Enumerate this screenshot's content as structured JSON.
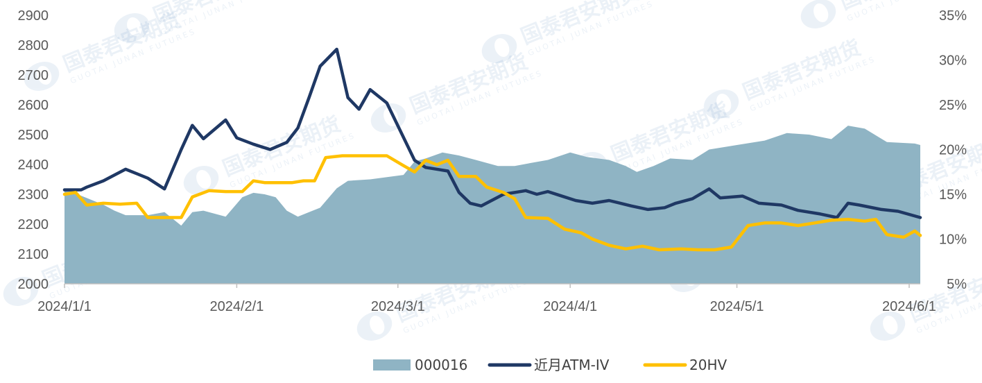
{
  "chart_data": {
    "type": "line",
    "x_axis": {
      "type": "date",
      "range": [
        "2024-01-01",
        "2024-06-03"
      ],
      "ticks": [
        {
          "date": "2024-01-01",
          "label": "2024/1/1"
        },
        {
          "date": "2024-02-01",
          "label": "2024/2/1"
        },
        {
          "date": "2024-03-01",
          "label": "2024/3/1"
        },
        {
          "date": "2024-04-01",
          "label": "2024/4/1"
        },
        {
          "date": "2024-05-01",
          "label": "2024/5/1"
        },
        {
          "date": "2024-06-01",
          "label": "2024/6/1"
        }
      ]
    },
    "y_left": {
      "min": 2000,
      "max": 2900,
      "ticks": [
        "2000",
        "2100",
        "2200",
        "2300",
        "2400",
        "2500",
        "2600",
        "2700",
        "2800",
        "2900"
      ]
    },
    "y_right": {
      "min": 0.05,
      "max": 0.35,
      "ticks": [
        "5%",
        "10%",
        "15%",
        "20%",
        "25%",
        "30%",
        "35%"
      ]
    },
    "legend_position": "bottom",
    "grid": false,
    "series": [
      {
        "name": "000016",
        "kind": "area",
        "axis": "left",
        "color": "#8fb4c4",
        "points": [
          [
            "2024-01-01",
            2320
          ],
          [
            "2024-01-04",
            2295
          ],
          [
            "2024-01-08",
            2265
          ],
          [
            "2024-01-10",
            2245
          ],
          [
            "2024-01-12",
            2230
          ],
          [
            "2024-01-16",
            2230
          ],
          [
            "2024-01-19",
            2240
          ],
          [
            "2024-01-22",
            2195
          ],
          [
            "2024-01-24",
            2240
          ],
          [
            "2024-01-26",
            2245
          ],
          [
            "2024-01-30",
            2225
          ],
          [
            "2024-02-02",
            2290
          ],
          [
            "2024-02-04",
            2305
          ],
          [
            "2024-02-06",
            2300
          ],
          [
            "2024-02-08",
            2290
          ],
          [
            "2024-02-10",
            2245
          ],
          [
            "2024-02-12",
            2225
          ],
          [
            "2024-02-14",
            2240
          ],
          [
            "2024-02-16",
            2255
          ],
          [
            "2024-02-19",
            2320
          ],
          [
            "2024-02-21",
            2345
          ],
          [
            "2024-02-25",
            2350
          ],
          [
            "2024-03-02",
            2365
          ],
          [
            "2024-03-04",
            2410
          ],
          [
            "2024-03-06",
            2420
          ],
          [
            "2024-03-09",
            2440
          ],
          [
            "2024-03-12",
            2430
          ],
          [
            "2024-03-15",
            2415
          ],
          [
            "2024-03-19",
            2395
          ],
          [
            "2024-03-22",
            2395
          ],
          [
            "2024-03-25",
            2405
          ],
          [
            "2024-03-28",
            2415
          ],
          [
            "2024-04-01",
            2440
          ],
          [
            "2024-04-04",
            2425
          ],
          [
            "2024-04-08",
            2415
          ],
          [
            "2024-04-11",
            2395
          ],
          [
            "2024-04-13",
            2375
          ],
          [
            "2024-04-16",
            2395
          ],
          [
            "2024-04-19",
            2420
          ],
          [
            "2024-04-23",
            2415
          ],
          [
            "2024-04-26",
            2450
          ],
          [
            "2024-05-01",
            2465
          ],
          [
            "2024-05-06",
            2480
          ],
          [
            "2024-05-10",
            2505
          ],
          [
            "2024-05-14",
            2500
          ],
          [
            "2024-05-18",
            2485
          ],
          [
            "2024-05-21",
            2530
          ],
          [
            "2024-05-24",
            2520
          ],
          [
            "2024-05-28",
            2475
          ],
          [
            "2024-06-02",
            2470
          ],
          [
            "2024-06-03",
            2465
          ]
        ]
      },
      {
        "name": "近月ATM-IV",
        "kind": "line",
        "axis": "right",
        "color": "#1f3864",
        "points": [
          [
            "2024-01-01",
            0.155
          ],
          [
            "2024-01-04",
            0.155
          ],
          [
            "2024-01-05",
            0.158
          ],
          [
            "2024-01-08",
            0.165
          ],
          [
            "2024-01-12",
            0.178
          ],
          [
            "2024-01-14",
            0.173
          ],
          [
            "2024-01-16",
            0.168
          ],
          [
            "2024-01-19",
            0.156
          ],
          [
            "2024-01-22",
            0.2
          ],
          [
            "2024-01-24",
            0.227
          ],
          [
            "2024-01-26",
            0.212
          ],
          [
            "2024-01-30",
            0.233
          ],
          [
            "2024-02-01",
            0.213
          ],
          [
            "2024-02-04",
            0.206
          ],
          [
            "2024-02-07",
            0.2
          ],
          [
            "2024-02-10",
            0.208
          ],
          [
            "2024-02-12",
            0.224
          ],
          [
            "2024-02-14",
            0.258
          ],
          [
            "2024-02-16",
            0.293
          ],
          [
            "2024-02-19",
            0.312
          ],
          [
            "2024-02-21",
            0.258
          ],
          [
            "2024-02-23",
            0.245
          ],
          [
            "2024-02-25",
            0.267
          ],
          [
            "2024-02-28",
            0.252
          ],
          [
            "2024-03-04",
            0.188
          ],
          [
            "2024-03-06",
            0.18
          ],
          [
            "2024-03-10",
            0.176
          ],
          [
            "2024-03-12",
            0.152
          ],
          [
            "2024-03-14",
            0.14
          ],
          [
            "2024-03-16",
            0.137
          ],
          [
            "2024-03-20",
            0.15
          ],
          [
            "2024-03-24",
            0.154
          ],
          [
            "2024-03-26",
            0.15
          ],
          [
            "2024-03-28",
            0.153
          ],
          [
            "2024-03-30",
            0.149
          ],
          [
            "2024-04-02",
            0.143
          ],
          [
            "2024-04-05",
            0.14
          ],
          [
            "2024-04-08",
            0.143
          ],
          [
            "2024-04-12",
            0.137
          ],
          [
            "2024-04-15",
            0.133
          ],
          [
            "2024-04-18",
            0.135
          ],
          [
            "2024-04-20",
            0.14
          ],
          [
            "2024-04-23",
            0.145
          ],
          [
            "2024-04-26",
            0.156
          ],
          [
            "2024-04-28",
            0.146
          ],
          [
            "2024-05-02",
            0.148
          ],
          [
            "2024-05-05",
            0.14
          ],
          [
            "2024-05-09",
            0.138
          ],
          [
            "2024-05-12",
            0.132
          ],
          [
            "2024-05-16",
            0.128
          ],
          [
            "2024-05-19",
            0.124
          ],
          [
            "2024-05-21",
            0.14
          ],
          [
            "2024-05-23",
            0.138
          ],
          [
            "2024-05-27",
            0.133
          ],
          [
            "2024-05-30",
            0.131
          ],
          [
            "2024-06-03",
            0.124
          ]
        ]
      },
      {
        "name": "20HV",
        "kind": "line",
        "axis": "right",
        "color": "#ffc000",
        "points": [
          [
            "2024-01-01",
            0.15
          ],
          [
            "2024-01-03",
            0.152
          ],
          [
            "2024-01-05",
            0.138
          ],
          [
            "2024-01-08",
            0.14
          ],
          [
            "2024-01-11",
            0.139
          ],
          [
            "2024-01-14",
            0.14
          ],
          [
            "2024-01-16",
            0.124
          ],
          [
            "2024-01-19",
            0.124
          ],
          [
            "2024-01-22",
            0.124
          ],
          [
            "2024-01-24",
            0.147
          ],
          [
            "2024-01-27",
            0.154
          ],
          [
            "2024-01-30",
            0.153
          ],
          [
            "2024-02-02",
            0.153
          ],
          [
            "2024-02-04",
            0.165
          ],
          [
            "2024-02-06",
            0.163
          ],
          [
            "2024-02-09",
            0.163
          ],
          [
            "2024-02-11",
            0.163
          ],
          [
            "2024-02-13",
            0.165
          ],
          [
            "2024-02-15",
            0.165
          ],
          [
            "2024-02-17",
            0.191
          ],
          [
            "2024-02-20",
            0.193
          ],
          [
            "2024-02-24",
            0.193
          ],
          [
            "2024-02-28",
            0.193
          ],
          [
            "2024-03-02",
            0.182
          ],
          [
            "2024-03-04",
            0.175
          ],
          [
            "2024-03-06",
            0.188
          ],
          [
            "2024-03-08",
            0.183
          ],
          [
            "2024-03-10",
            0.188
          ],
          [
            "2024-03-12",
            0.17
          ],
          [
            "2024-03-15",
            0.17
          ],
          [
            "2024-03-17",
            0.158
          ],
          [
            "2024-03-20",
            0.152
          ],
          [
            "2024-03-22",
            0.145
          ],
          [
            "2024-03-24",
            0.124
          ],
          [
            "2024-03-28",
            0.123
          ],
          [
            "2024-03-31",
            0.111
          ],
          [
            "2024-04-03",
            0.107
          ],
          [
            "2024-04-05",
            0.1
          ],
          [
            "2024-04-08",
            0.093
          ],
          [
            "2024-04-11",
            0.089
          ],
          [
            "2024-04-14",
            0.092
          ],
          [
            "2024-04-17",
            0.088
          ],
          [
            "2024-04-21",
            0.089
          ],
          [
            "2024-04-24",
            0.088
          ],
          [
            "2024-04-27",
            0.088
          ],
          [
            "2024-04-30",
            0.091
          ],
          [
            "2024-05-03",
            0.115
          ],
          [
            "2024-05-06",
            0.118
          ],
          [
            "2024-05-09",
            0.118
          ],
          [
            "2024-05-12",
            0.115
          ],
          [
            "2024-05-15",
            0.118
          ],
          [
            "2024-05-18",
            0.121
          ],
          [
            "2024-05-21",
            0.122
          ],
          [
            "2024-05-24",
            0.12
          ],
          [
            "2024-05-26",
            0.122
          ],
          [
            "2024-05-28",
            0.105
          ],
          [
            "2024-05-31",
            0.102
          ],
          [
            "2024-06-02",
            0.109
          ],
          [
            "2024-06-03",
            0.104
          ]
        ]
      }
    ]
  },
  "watermark": {
    "name": "国泰君安期货",
    "subtitle": "GUOTAI JUNAN FUTURES"
  }
}
